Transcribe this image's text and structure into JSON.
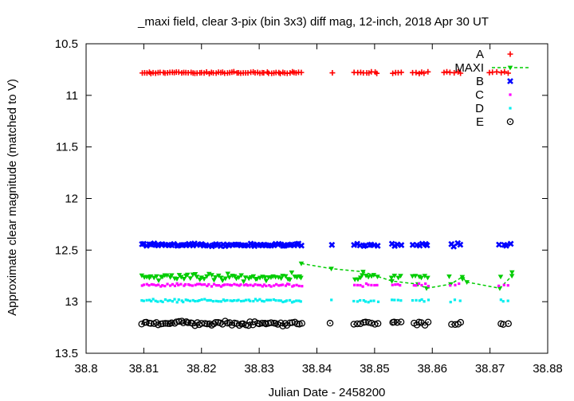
{
  "chart_data": {
    "type": "scatter",
    "title": "_maxi field, clear 3-pix (bin 3x3) diff mag, 12-inch, 2018 Apr 30 UT",
    "xlabel": "Julian Date - 2458200",
    "ylabel": "Approximate clear magnitude (matched to V)",
    "xlim": [
      38.8,
      38.88
    ],
    "ylim": [
      10.5,
      13.5
    ],
    "y_inverted": true,
    "grid": false,
    "legend_position": "top-right",
    "x_ticks": [
      "38.8",
      "38.81",
      "38.82",
      "38.83",
      "38.84",
      "38.85",
      "38.86",
      "38.87",
      "38.88"
    ],
    "y_ticks": [
      "10.5",
      "11",
      "11.5",
      "12",
      "12.5",
      "13",
      "13.5"
    ],
    "series": [
      {
        "name": "A",
        "color": "#ff0000",
        "marker": "plus",
        "mean": 10.78,
        "spread": 0.012,
        "clusters": [
          [
            38.8097,
            38.8373,
            0.0004
          ],
          [
            38.8425,
            38.8425,
            0.001
          ],
          [
            38.8465,
            38.8508,
            0.0005
          ],
          [
            38.853,
            38.8547,
            0.0005
          ],
          [
            38.8567,
            38.8593,
            0.0005
          ],
          [
            38.862,
            38.865,
            0.0006
          ],
          [
            38.87,
            38.8735,
            0.0006
          ]
        ]
      },
      {
        "name": "MAXI",
        "color": "#00cc00",
        "marker": "triangle",
        "mean": 12.76,
        "spread": 0.045,
        "clusters": [
          [
            38.8097,
            38.8373,
            0.0004
          ],
          [
            38.8465,
            38.8508,
            0.0005
          ],
          [
            38.853,
            38.8547,
            0.0005
          ],
          [
            38.8567,
            38.8593,
            0.0005
          ],
          [
            38.8632,
            38.8632,
            0.001
          ],
          [
            38.8652,
            38.8652,
            0.001
          ],
          [
            38.8717,
            38.8717,
            0.001
          ],
          [
            38.8738,
            38.8738,
            0.001
          ]
        ],
        "line": [
          [
            38.8373,
            12.63
          ],
          [
            38.8425,
            12.68
          ],
          [
            38.848,
            12.71
          ],
          [
            38.853,
            12.8
          ],
          [
            38.8575,
            12.83
          ],
          [
            38.859,
            12.87
          ],
          [
            38.8632,
            12.83
          ],
          [
            38.8652,
            12.76
          ],
          [
            38.866,
            12.81
          ],
          [
            38.8717,
            12.87
          ],
          [
            38.8738,
            12.75
          ]
        ]
      },
      {
        "name": "B",
        "color": "#0000ff",
        "marker": "x-square",
        "mean": 12.45,
        "spread": 0.02,
        "clusters": [
          [
            38.8097,
            38.8373,
            0.0004
          ],
          [
            38.8425,
            38.8425,
            0.001
          ],
          [
            38.8465,
            38.8508,
            0.0005
          ],
          [
            38.853,
            38.8547,
            0.0005
          ],
          [
            38.8567,
            38.8593,
            0.0005
          ],
          [
            38.8632,
            38.865,
            0.0006
          ],
          [
            38.8717,
            38.874,
            0.0006
          ]
        ]
      },
      {
        "name": "C",
        "color": "#ff00ff",
        "marker": "square-small",
        "mean": 12.84,
        "spread": 0.02,
        "clusters": [
          [
            38.8097,
            38.8373,
            0.0004
          ],
          [
            38.8465,
            38.8508,
            0.0005
          ],
          [
            38.853,
            38.8547,
            0.0005
          ],
          [
            38.8567,
            38.8593,
            0.0005
          ],
          [
            38.8632,
            38.865,
            0.0008
          ],
          [
            38.8717,
            38.8738,
            0.0008
          ]
        ]
      },
      {
        "name": "D",
        "color": "#00eeee",
        "marker": "square-small",
        "mean": 12.99,
        "spread": 0.02,
        "clusters": [
          [
            38.8097,
            38.8373,
            0.0004
          ],
          [
            38.8425,
            38.8425,
            0.001
          ],
          [
            38.8465,
            38.8508,
            0.0005
          ],
          [
            38.853,
            38.8547,
            0.0005
          ],
          [
            38.8567,
            38.8593,
            0.0005
          ],
          [
            38.8632,
            38.865,
            0.0008
          ],
          [
            38.8717,
            38.8738,
            0.0008
          ]
        ]
      },
      {
        "name": "E",
        "color": "#000000",
        "marker": "circle-dot",
        "mean": 13.21,
        "spread": 0.03,
        "clusters": [
          [
            38.8097,
            38.8373,
            0.0004
          ],
          [
            38.8425,
            38.8425,
            0.001
          ],
          [
            38.8465,
            38.8508,
            0.0005
          ],
          [
            38.853,
            38.8547,
            0.0005
          ],
          [
            38.8567,
            38.8593,
            0.0005
          ],
          [
            38.8632,
            38.865,
            0.0006
          ],
          [
            38.8717,
            38.8738,
            0.0008
          ]
        ]
      }
    ]
  }
}
